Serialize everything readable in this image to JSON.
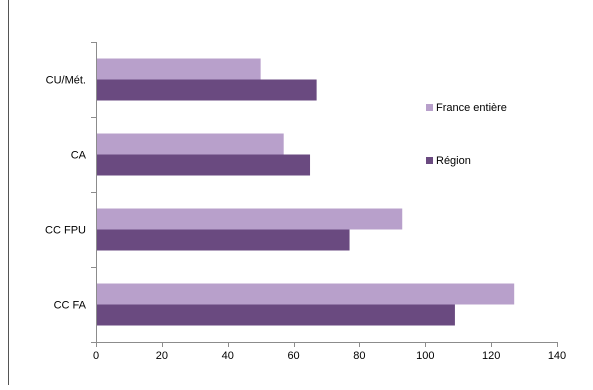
{
  "colors": {
    "france_entiere": "#b8a0cb",
    "region": "#6a4a80",
    "axis": "#8c8c8c",
    "frame_line": "#555555"
  },
  "chart_data": {
    "type": "bar",
    "orientation": "horizontal",
    "categories": [
      "CU/Mét.",
      "CA",
      "CC FPU",
      "CC FA"
    ],
    "series": [
      {
        "name": "France entière",
        "values": [
          50,
          57,
          93,
          127
        ]
      },
      {
        "name": "Région",
        "values": [
          67,
          65,
          77,
          109
        ]
      }
    ],
    "xlim": [
      0,
      140
    ],
    "xticks": [
      "0",
      "20",
      "40",
      "60",
      "80",
      "100",
      "120",
      "140"
    ],
    "grid": false,
    "legend_position": "right"
  }
}
